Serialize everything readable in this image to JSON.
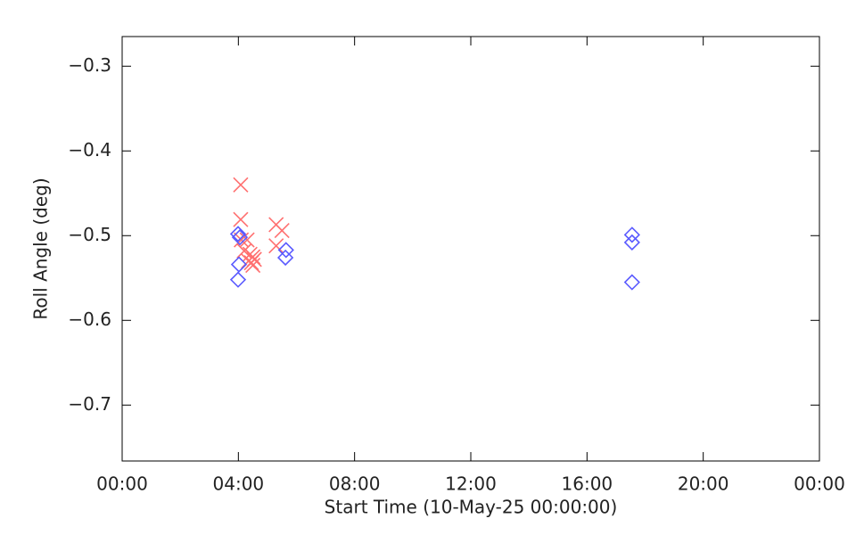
{
  "chart_data": {
    "type": "scatter",
    "xlabel": "Start Time (10-May-25 00:00:00)",
    "ylabel": "Roll Angle (deg)",
    "xlim": [
      0,
      24
    ],
    "xticks": [
      {
        "value": 0,
        "label": "00:00"
      },
      {
        "value": 4,
        "label": "04:00"
      },
      {
        "value": 8,
        "label": "08:00"
      },
      {
        "value": 12,
        "label": "12:00"
      },
      {
        "value": 16,
        "label": "16:00"
      },
      {
        "value": 20,
        "label": "20:00"
      },
      {
        "value": 24,
        "label": "00:00"
      }
    ],
    "ylim": [
      -0.766,
      -0.265
    ],
    "yticks": [
      {
        "value": -0.3,
        "label": "−0.3"
      },
      {
        "value": -0.4,
        "label": "−0.4"
      },
      {
        "value": -0.5,
        "label": "−0.5"
      },
      {
        "value": -0.6,
        "label": "−0.6"
      },
      {
        "value": -0.7,
        "label": "−0.7"
      }
    ],
    "grid": false,
    "series": [
      {
        "color": "#ff7070",
        "marker": "x",
        "x": [
          4.08,
          4.08,
          4.1,
          4.3,
          4.2,
          4.4,
          4.5,
          4.35,
          4.45,
          4.55,
          4.5,
          5.3,
          5.5,
          5.3
        ],
        "values": [
          -0.44,
          -0.481,
          -0.505,
          -0.505,
          -0.518,
          -0.522,
          -0.525,
          -0.53,
          -0.532,
          -0.528,
          -0.535,
          -0.487,
          -0.494,
          -0.512
        ]
      },
      {
        "color": "#5a5aff",
        "marker": "diamond",
        "x": [
          3.99,
          4.05,
          4.02,
          3.99,
          5.64,
          5.62,
          17.55,
          17.55,
          17.55
        ],
        "values": [
          -0.498,
          -0.502,
          -0.534,
          -0.552,
          -0.517,
          -0.526,
          -0.499,
          -0.508,
          -0.555
        ]
      }
    ]
  }
}
